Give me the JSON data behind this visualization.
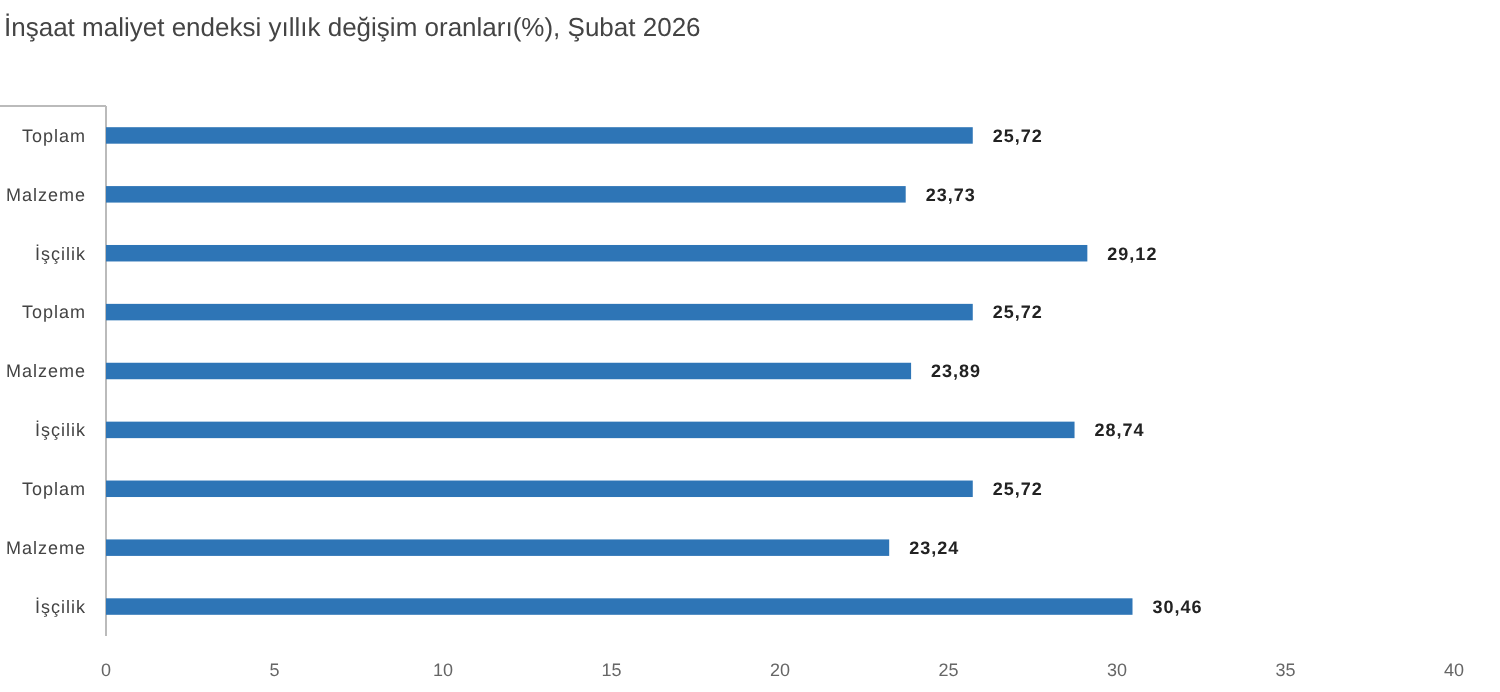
{
  "chart_data": {
    "type": "bar",
    "orientation": "horizontal",
    "title": "İnşaat maliyet endeksi yıllık değişim oranları(%), Şubat 2026",
    "categories": [
      "Toplam",
      "Malzeme",
      "İşçilik",
      "Toplam",
      "Malzeme",
      "İşçilik",
      "Toplam",
      "Malzeme",
      "İşçilik"
    ],
    "values": [
      25.72,
      23.73,
      29.12,
      25.72,
      23.89,
      28.74,
      25.72,
      23.24,
      30.46
    ],
    "value_labels": [
      "25,72",
      "23,73",
      "29,12",
      "25,72",
      "23,89",
      "28,74",
      "25,72",
      "23,24",
      "30,46"
    ],
    "color": "#2e75b6",
    "xlim": [
      0,
      40
    ],
    "xticks": [
      0,
      5,
      10,
      15,
      20,
      25,
      30,
      35,
      40
    ],
    "grid": false
  }
}
